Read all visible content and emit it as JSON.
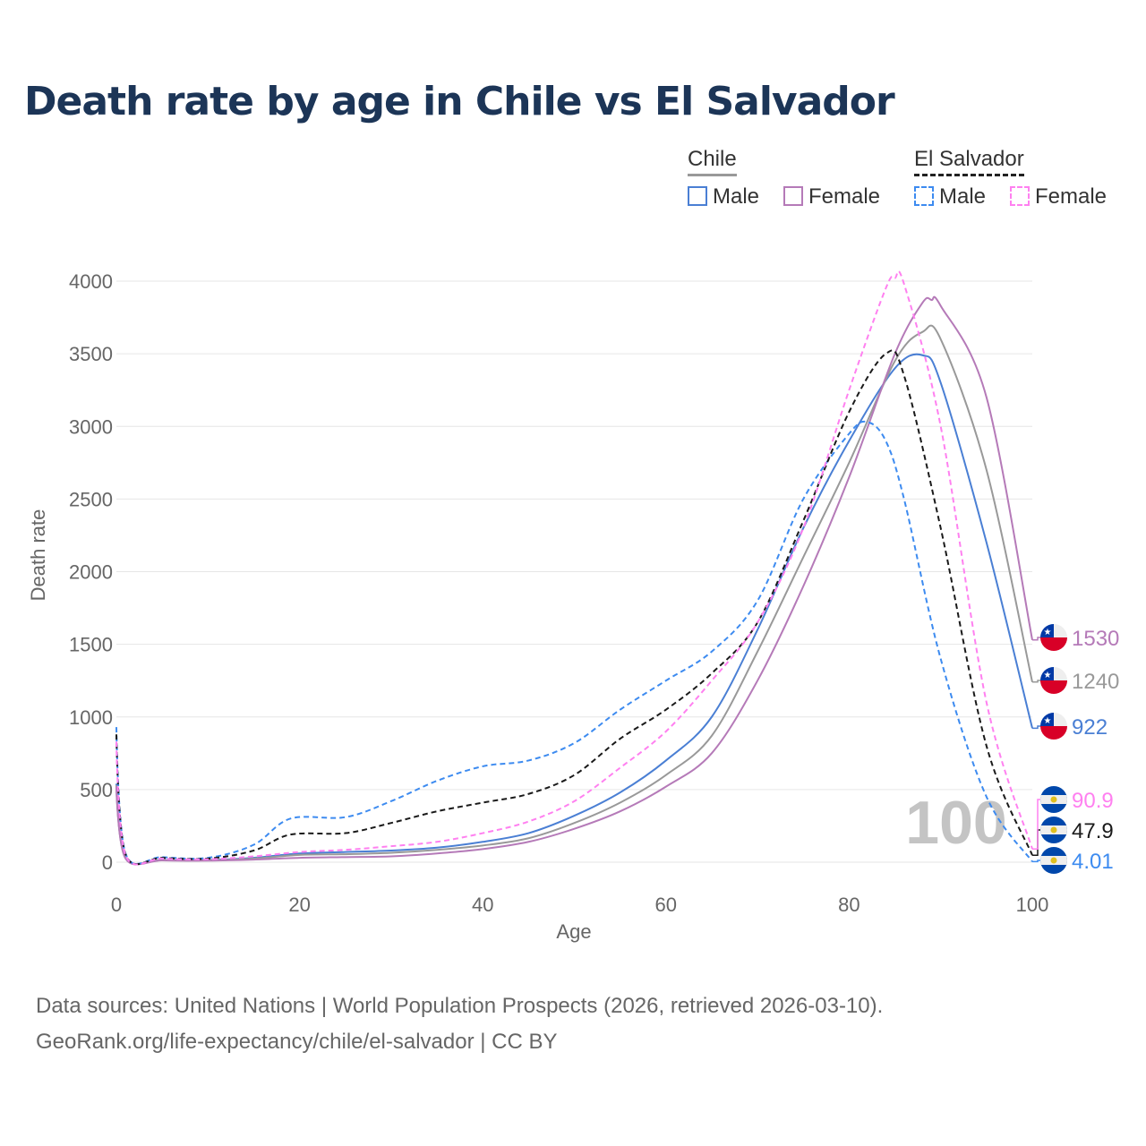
{
  "title": "Death rate by age in Chile vs El Salvador",
  "legend": {
    "chile": "Chile",
    "el_salvador": "El Salvador",
    "male": "Male",
    "female": "Female"
  },
  "footer": {
    "line1": "Data sources: United Nations | World Population Prospects (2026, retrieved 2026-03-10).",
    "line2": "GeoRank.org/life-expectancy/chile/el-salvador | CC BY"
  },
  "watermark": "100",
  "chart_data": {
    "type": "line",
    "title": "Death rate by age in Chile vs El Salvador",
    "xlabel": "Age",
    "ylabel": "Death rate",
    "xlim": [
      0,
      100
    ],
    "ylim": [
      0,
      4000
    ],
    "xticks": [
      "0",
      "20",
      "40",
      "60",
      "80",
      "100"
    ],
    "yticks": [
      "0",
      "500",
      "1000",
      "1500",
      "2000",
      "2500",
      "3000",
      "3500",
      "4000"
    ],
    "series": [
      {
        "name": "Chile Male",
        "color": "#4a7fd4",
        "dash": false,
        "end_label": "922",
        "country": "chile",
        "x": [
          0,
          1,
          5,
          10,
          15,
          20,
          25,
          30,
          35,
          40,
          45,
          50,
          55,
          60,
          65,
          70,
          75,
          80,
          85,
          88,
          90,
          95,
          100
        ],
        "y": [
          540,
          30,
          15,
          15,
          30,
          60,
          70,
          80,
          100,
          140,
          200,
          320,
          480,
          700,
          1000,
          1600,
          2300,
          2900,
          3400,
          3490,
          3300,
          2200,
          922
        ]
      },
      {
        "name": "Chile Total",
        "color": "#999999",
        "dash": false,
        "end_label": "1240",
        "country": "chile",
        "x": [
          0,
          1,
          5,
          10,
          15,
          20,
          25,
          30,
          35,
          40,
          45,
          50,
          55,
          60,
          65,
          70,
          75,
          80,
          85,
          88,
          90,
          95,
          100
        ],
        "y": [
          530,
          28,
          14,
          13,
          25,
          50,
          55,
          65,
          85,
          115,
          165,
          270,
          410,
          600,
          870,
          1450,
          2100,
          2750,
          3450,
          3650,
          3600,
          2700,
          1240
        ]
      },
      {
        "name": "Chile Female",
        "color": "#b57ab8",
        "dash": false,
        "end_label": "1530",
        "country": "chile",
        "x": [
          0,
          1,
          5,
          10,
          15,
          20,
          25,
          30,
          35,
          40,
          45,
          50,
          55,
          60,
          65,
          70,
          75,
          80,
          85,
          88,
          89,
          90,
          95,
          100
        ],
        "y": [
          520,
          25,
          12,
          11,
          18,
          30,
          35,
          40,
          60,
          90,
          140,
          230,
          350,
          520,
          750,
          1250,
          1900,
          2650,
          3500,
          3850,
          3870,
          3830,
          3200,
          1530
        ]
      },
      {
        "name": "El Salvador Male",
        "color": "#3d8bf0",
        "dash": true,
        "end_label": "4.01",
        "country": "el-salvador",
        "x": [
          0,
          1,
          5,
          10,
          15,
          19,
          25,
          30,
          35,
          40,
          45,
          50,
          55,
          60,
          65,
          70,
          75,
          80,
          82,
          84,
          86,
          90,
          95,
          100
        ],
        "y": [
          930,
          60,
          35,
          30,
          120,
          300,
          310,
          420,
          560,
          660,
          700,
          820,
          1050,
          1250,
          1450,
          1800,
          2500,
          2950,
          3030,
          2900,
          2500,
          1400,
          450,
          4
        ]
      },
      {
        "name": "El Salvador Total",
        "color": "#1a1a1a",
        "dash": true,
        "end_label": "47.9",
        "country": "el-salvador",
        "x": [
          0,
          1,
          5,
          10,
          15,
          19,
          25,
          30,
          35,
          40,
          45,
          50,
          55,
          60,
          65,
          70,
          75,
          80,
          84,
          86,
          90,
          95,
          100
        ],
        "y": [
          880,
          55,
          30,
          25,
          80,
          190,
          200,
          270,
          350,
          410,
          470,
          600,
          850,
          1050,
          1300,
          1650,
          2350,
          3100,
          3500,
          3350,
          2300,
          800,
          48
        ]
      },
      {
        "name": "El Salvador Female",
        "color": "#ff80f0",
        "dash": true,
        "end_label": "90.9",
        "country": "el-salvador",
        "x": [
          0,
          1,
          5,
          10,
          15,
          20,
          25,
          30,
          35,
          40,
          45,
          50,
          55,
          60,
          65,
          70,
          75,
          80,
          84,
          85,
          86,
          90,
          95,
          100
        ],
        "y": [
          830,
          50,
          25,
          20,
          40,
          70,
          85,
          110,
          140,
          200,
          280,
          420,
          650,
          900,
          1250,
          1650,
          2300,
          3250,
          3950,
          4020,
          3980,
          3000,
          1100,
          91
        ]
      }
    ]
  }
}
